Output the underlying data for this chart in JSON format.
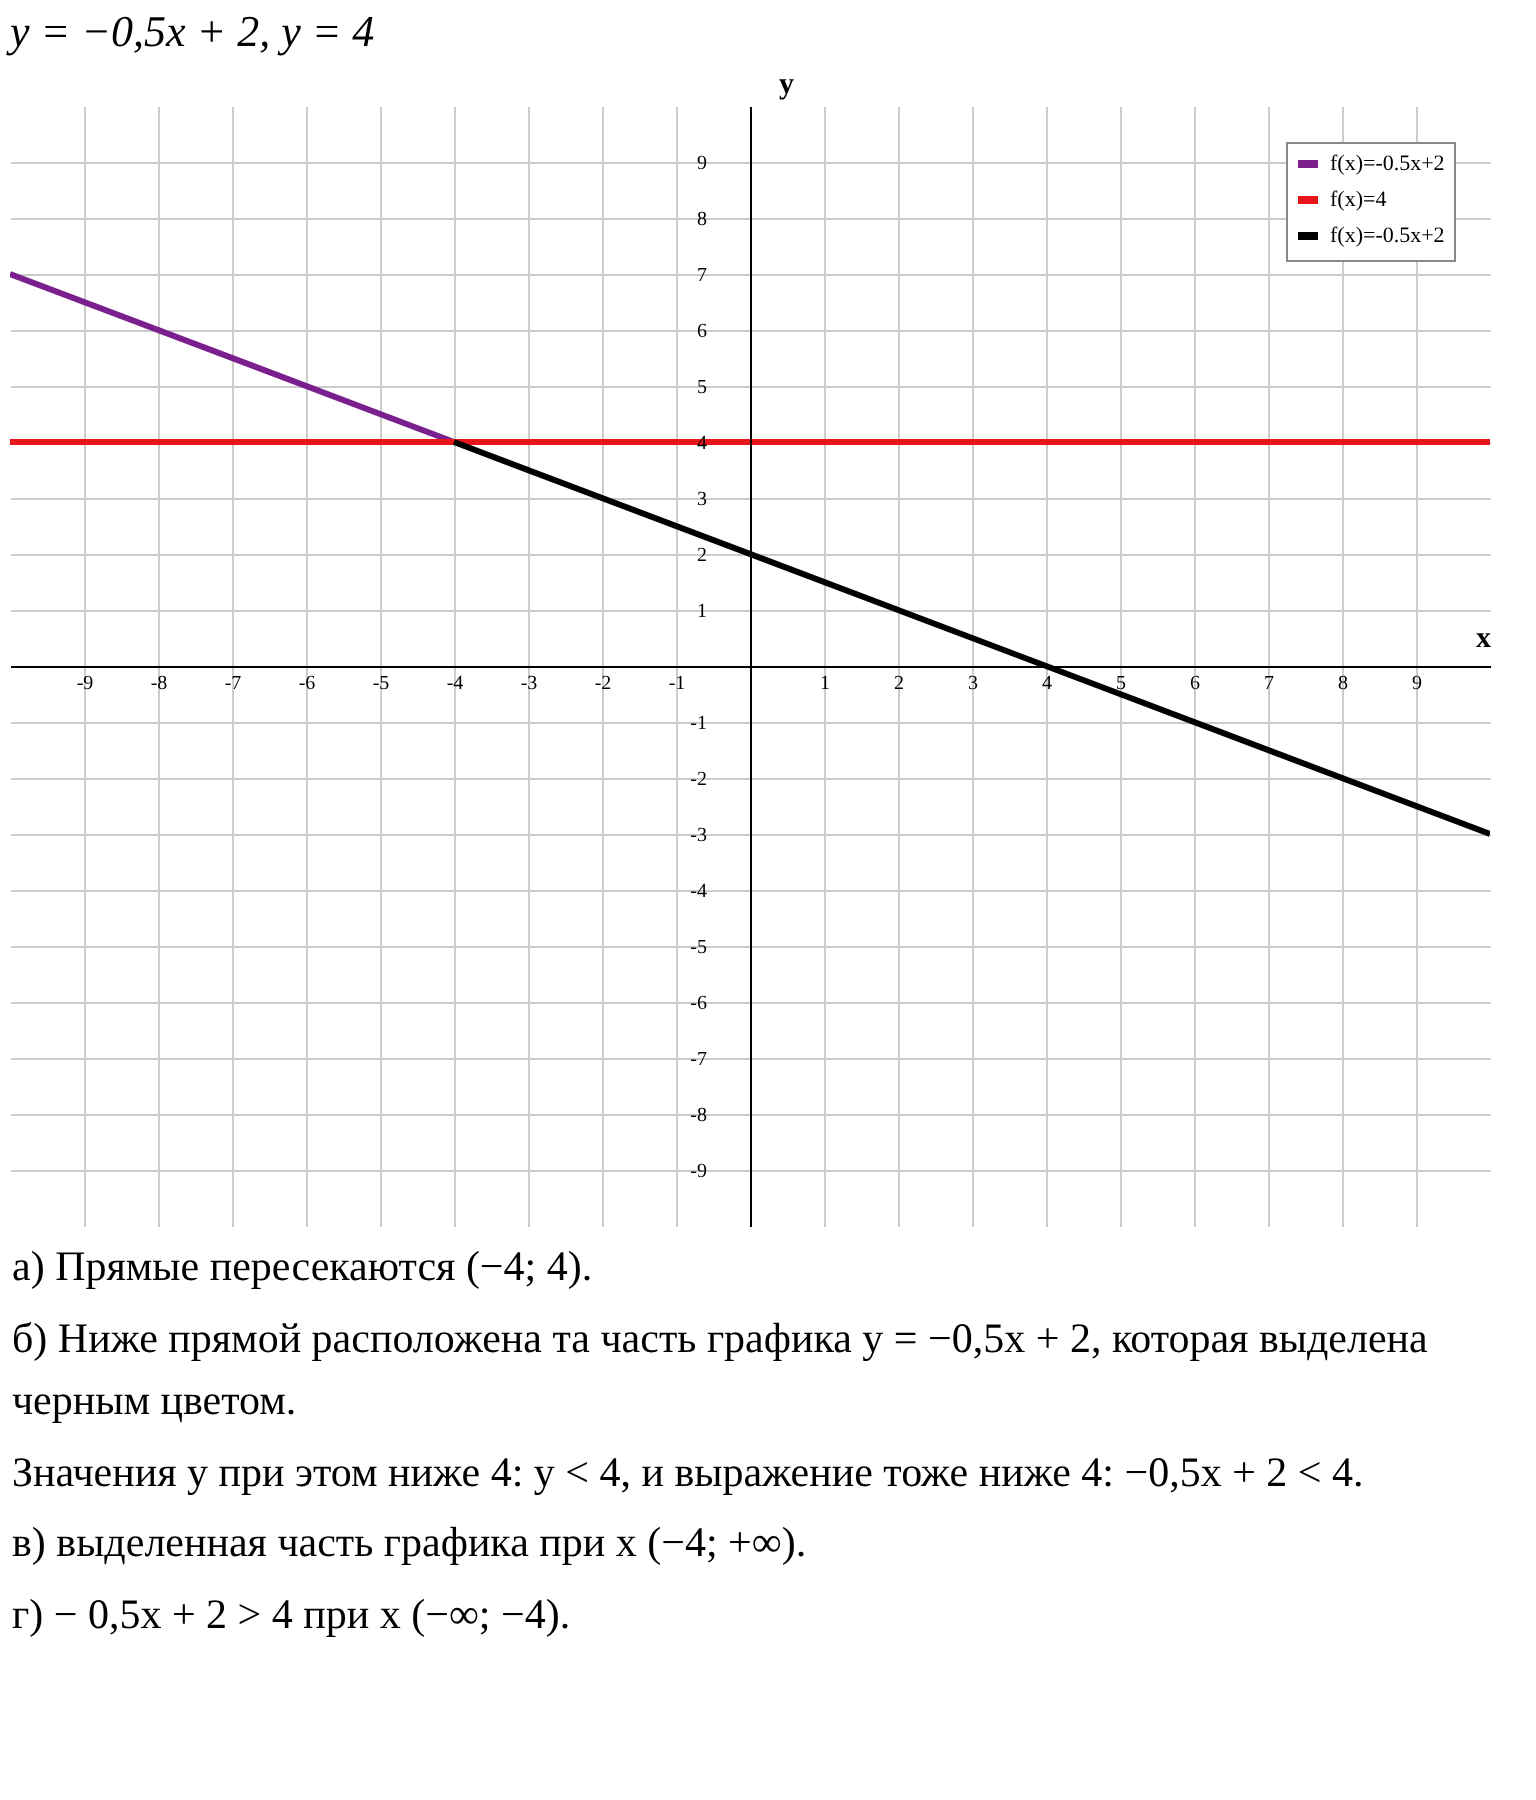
{
  "chart_data": {
    "type": "line",
    "title": "y = −0,5x + 2,        y = 4",
    "xlabel": "x",
    "ylabel": "y",
    "xlim": [
      -10,
      10
    ],
    "ylim": [
      -10,
      10
    ],
    "xticks": [
      -9,
      -8,
      -7,
      -6,
      -5,
      -4,
      -3,
      -2,
      -1,
      1,
      2,
      3,
      4,
      5,
      6,
      7,
      8,
      9
    ],
    "yticks": [
      -9,
      -8,
      -7,
      -6,
      -5,
      -4,
      -3,
      -2,
      -1,
      1,
      2,
      3,
      4,
      5,
      6,
      7,
      8,
      9
    ],
    "grid": true,
    "legend": "top right",
    "series": [
      {
        "name": "f(x)=-0.5x+2",
        "color": "#7b1f8f",
        "x": [
          -10,
          -4
        ],
        "values": [
          7,
          4
        ]
      },
      {
        "name": "f(x)=4",
        "color": "#e8151b",
        "x": [
          -10,
          10
        ],
        "values": [
          4,
          4
        ]
      },
      {
        "name": "f(x)=-0.5x+2",
        "color": "#000000",
        "x": [
          -4,
          10
        ],
        "values": [
          4,
          -3
        ]
      }
    ],
    "annotations": [
      "а) Прямые пересекаются (−4; 4).",
      "б) Ниже прямой расположена та часть графика y = −0,5x + 2, которая выделена черным цветом.",
      "Значения y при этом ниже 4: y < 4, и выражение тоже ниже 4: −0,5x + 2 < 4.",
      "в) выделенная часть графика при x (−4; +∞).",
      "г) − 0,5x + 2 > 4 при x (−∞; −4)."
    ]
  }
}
